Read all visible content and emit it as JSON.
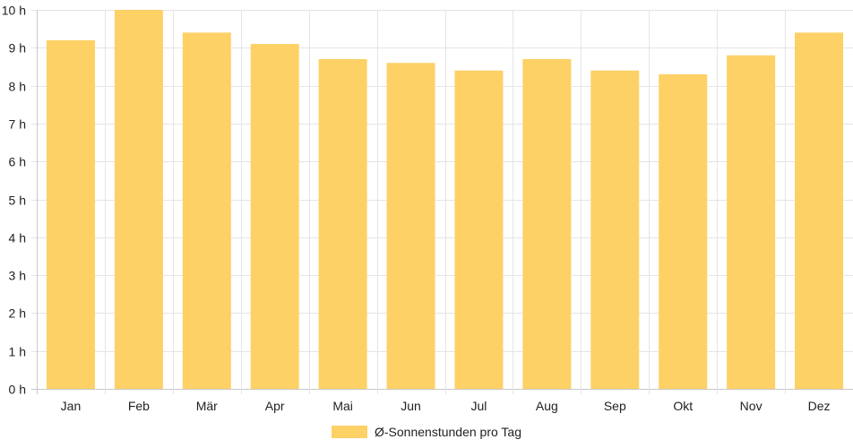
{
  "chart_data": {
    "type": "bar",
    "categories": [
      "Jan",
      "Feb",
      "Mär",
      "Apr",
      "Mai",
      "Jun",
      "Jul",
      "Aug",
      "Sep",
      "Okt",
      "Nov",
      "Dez"
    ],
    "series": [
      {
        "name": "Ø-Sonnenstunden pro Tag",
        "values": [
          9.2,
          10.0,
          9.4,
          9.1,
          8.7,
          8.6,
          8.4,
          8.7,
          8.4,
          8.3,
          8.8,
          9.4
        ]
      }
    ],
    "y_ticks": [
      "0 h",
      "1 h",
      "2 h",
      "3 h",
      "4 h",
      "5 h",
      "6 h",
      "7 h",
      "8 h",
      "9 h",
      "10 h"
    ],
    "ylim": [
      0,
      10
    ],
    "grid": true,
    "legend": "bottom",
    "colors": {
      "bar": "#fdd166",
      "grid": "#e5e5e5",
      "axis": "#c8c8c8",
      "text": "#222222"
    }
  }
}
